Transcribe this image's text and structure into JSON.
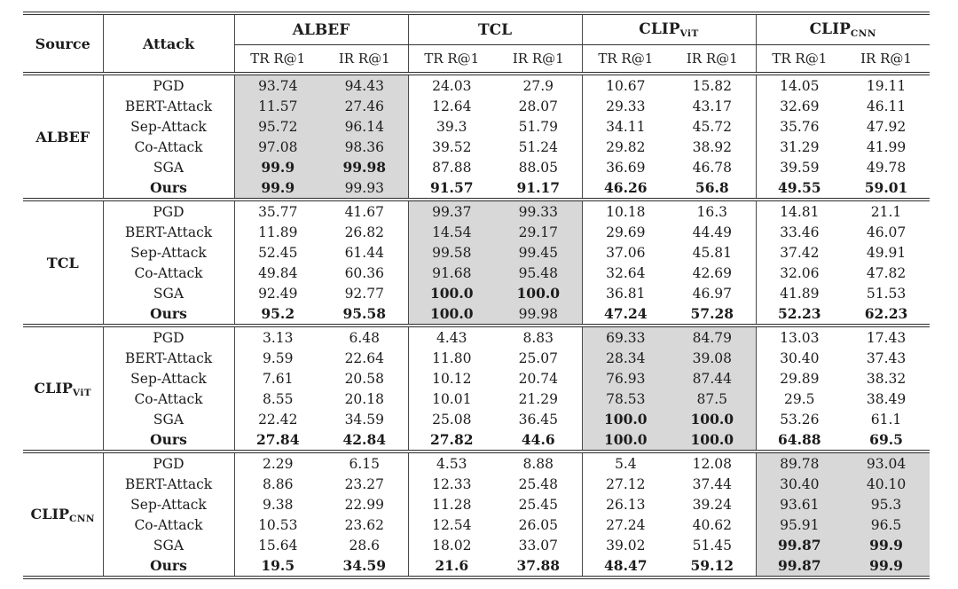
{
  "table": {
    "source_header": "Source",
    "attack_header": "Attack",
    "metric_headers": [
      "TR R@1",
      "IR R@1"
    ],
    "models": [
      {
        "label": "ALBEF",
        "sub": ""
      },
      {
        "label": "TCL",
        "sub": ""
      },
      {
        "label": "CLIP",
        "sub": "ViT"
      },
      {
        "label": "CLIP",
        "sub": "CNN"
      }
    ],
    "blocks": [
      {
        "source": {
          "label": "ALBEF",
          "sub": ""
        },
        "highlight_cols": [
          0,
          1
        ],
        "rows": [
          {
            "attack": "PGD",
            "bold_attack": false,
            "values": [
              "93.74",
              "94.43",
              "24.03",
              "27.9",
              "10.67",
              "15.82",
              "14.05",
              "19.11"
            ],
            "bold": [
              0,
              0,
              0,
              0,
              0,
              0,
              0,
              0
            ]
          },
          {
            "attack": "BERT-Attack",
            "bold_attack": false,
            "values": [
              "11.57",
              "27.46",
              "12.64",
              "28.07",
              "29.33",
              "43.17",
              "32.69",
              "46.11"
            ],
            "bold": [
              0,
              0,
              0,
              0,
              0,
              0,
              0,
              0
            ]
          },
          {
            "attack": "Sep-Attack",
            "bold_attack": false,
            "values": [
              "95.72",
              "96.14",
              "39.3",
              "51.79",
              "34.11",
              "45.72",
              "35.76",
              "47.92"
            ],
            "bold": [
              0,
              0,
              0,
              0,
              0,
              0,
              0,
              0
            ]
          },
          {
            "attack": "Co-Attack",
            "bold_attack": false,
            "values": [
              "97.08",
              "98.36",
              "39.52",
              "51.24",
              "29.82",
              "38.92",
              "31.29",
              "41.99"
            ],
            "bold": [
              0,
              0,
              0,
              0,
              0,
              0,
              0,
              0
            ]
          },
          {
            "attack": "SGA",
            "bold_attack": false,
            "values": [
              "99.9",
              "99.98",
              "87.88",
              "88.05",
              "36.69",
              "46.78",
              "39.59",
              "49.78"
            ],
            "bold": [
              1,
              1,
              0,
              0,
              0,
              0,
              0,
              0
            ]
          },
          {
            "attack": "Ours",
            "bold_attack": true,
            "values": [
              "99.9",
              "99.93",
              "91.57",
              "91.17",
              "46.26",
              "56.8",
              "49.55",
              "59.01"
            ],
            "bold": [
              1,
              0,
              1,
              1,
              1,
              1,
              1,
              1
            ]
          }
        ]
      },
      {
        "source": {
          "label": "TCL",
          "sub": ""
        },
        "highlight_cols": [
          2,
          3
        ],
        "rows": [
          {
            "attack": "PGD",
            "bold_attack": false,
            "values": [
              "35.77",
              "41.67",
              "99.37",
              "99.33",
              "10.18",
              "16.3",
              "14.81",
              "21.1"
            ],
            "bold": [
              0,
              0,
              0,
              0,
              0,
              0,
              0,
              0
            ]
          },
          {
            "attack": "BERT-Attack",
            "bold_attack": false,
            "values": [
              "11.89",
              "26.82",
              "14.54",
              "29.17",
              "29.69",
              "44.49",
              "33.46",
              "46.07"
            ],
            "bold": [
              0,
              0,
              0,
              0,
              0,
              0,
              0,
              0
            ]
          },
          {
            "attack": "Sep-Attack",
            "bold_attack": false,
            "values": [
              "52.45",
              "61.44",
              "99.58",
              "99.45",
              "37.06",
              "45.81",
              "37.42",
              "49.91"
            ],
            "bold": [
              0,
              0,
              0,
              0,
              0,
              0,
              0,
              0
            ]
          },
          {
            "attack": "Co-Attack",
            "bold_attack": false,
            "values": [
              "49.84",
              "60.36",
              "91.68",
              "95.48",
              "32.64",
              "42.69",
              "32.06",
              "47.82"
            ],
            "bold": [
              0,
              0,
              0,
              0,
              0,
              0,
              0,
              0
            ]
          },
          {
            "attack": "SGA",
            "bold_attack": false,
            "values": [
              "92.49",
              "92.77",
              "100.0",
              "100.0",
              "36.81",
              "46.97",
              "41.89",
              "51.53"
            ],
            "bold": [
              0,
              0,
              1,
              1,
              0,
              0,
              0,
              0
            ]
          },
          {
            "attack": "Ours",
            "bold_attack": true,
            "values": [
              "95.2",
              "95.58",
              "100.0",
              "99.98",
              "47.24",
              "57.28",
              "52.23",
              "62.23"
            ],
            "bold": [
              1,
              1,
              1,
              0,
              1,
              1,
              1,
              1
            ]
          }
        ]
      },
      {
        "source": {
          "label": "CLIP",
          "sub": "ViT"
        },
        "highlight_cols": [
          4,
          5
        ],
        "rows": [
          {
            "attack": "PGD",
            "bold_attack": false,
            "values": [
              "3.13",
              "6.48",
              "4.43",
              "8.83",
              "69.33",
              "84.79",
              "13.03",
              "17.43"
            ],
            "bold": [
              0,
              0,
              0,
              0,
              0,
              0,
              0,
              0
            ]
          },
          {
            "attack": "BERT-Attack",
            "bold_attack": false,
            "values": [
              "9.59",
              "22.64",
              "11.80",
              "25.07",
              "28.34",
              "39.08",
              "30.40",
              "37.43"
            ],
            "bold": [
              0,
              0,
              0,
              0,
              0,
              0,
              0,
              0
            ]
          },
          {
            "attack": "Sep-Attack",
            "bold_attack": false,
            "values": [
              "7.61",
              "20.58",
              "10.12",
              "20.74",
              "76.93",
              "87.44",
              "29.89",
              "38.32"
            ],
            "bold": [
              0,
              0,
              0,
              0,
              0,
              0,
              0,
              0
            ]
          },
          {
            "attack": "Co-Attack",
            "bold_attack": false,
            "values": [
              "8.55",
              "20.18",
              "10.01",
              "21.29",
              "78.53",
              "87.5",
              "29.5",
              "38.49"
            ],
            "bold": [
              0,
              0,
              0,
              0,
              0,
              0,
              0,
              0
            ]
          },
          {
            "attack": "SGA",
            "bold_attack": false,
            "values": [
              "22.42",
              "34.59",
              "25.08",
              "36.45",
              "100.0",
              "100.0",
              "53.26",
              "61.1"
            ],
            "bold": [
              0,
              0,
              0,
              0,
              1,
              1,
              0,
              0
            ]
          },
          {
            "attack": "Ours",
            "bold_attack": true,
            "values": [
              "27.84",
              "42.84",
              "27.82",
              "44.6",
              "100.0",
              "100.0",
              "64.88",
              "69.5"
            ],
            "bold": [
              1,
              1,
              1,
              1,
              1,
              1,
              1,
              1
            ]
          }
        ]
      },
      {
        "source": {
          "label": "CLIP",
          "sub": "CNN"
        },
        "highlight_cols": [
          6,
          7
        ],
        "rows": [
          {
            "attack": "PGD",
            "bold_attack": false,
            "values": [
              "2.29",
              "6.15",
              "4.53",
              "8.88",
              "5.4",
              "12.08",
              "89.78",
              "93.04"
            ],
            "bold": [
              0,
              0,
              0,
              0,
              0,
              0,
              0,
              0
            ]
          },
          {
            "attack": "BERT-Attack",
            "bold_attack": false,
            "values": [
              "8.86",
              "23.27",
              "12.33",
              "25.48",
              "27.12",
              "37.44",
              "30.40",
              "40.10"
            ],
            "bold": [
              0,
              0,
              0,
              0,
              0,
              0,
              0,
              0
            ]
          },
          {
            "attack": "Sep-Attack",
            "bold_attack": false,
            "values": [
              "9.38",
              "22.99",
              "11.28",
              "25.45",
              "26.13",
              "39.24",
              "93.61",
              "95.3"
            ],
            "bold": [
              0,
              0,
              0,
              0,
              0,
              0,
              0,
              0
            ]
          },
          {
            "attack": "Co-Attack",
            "bold_attack": false,
            "values": [
              "10.53",
              "23.62",
              "12.54",
              "26.05",
              "27.24",
              "40.62",
              "95.91",
              "96.5"
            ],
            "bold": [
              0,
              0,
              0,
              0,
              0,
              0,
              0,
              0
            ]
          },
          {
            "attack": "SGA",
            "bold_attack": false,
            "values": [
              "15.64",
              "28.6",
              "18.02",
              "33.07",
              "39.02",
              "51.45",
              "99.87",
              "99.9"
            ],
            "bold": [
              0,
              0,
              0,
              0,
              0,
              0,
              1,
              1
            ]
          },
          {
            "attack": "Ours",
            "bold_attack": true,
            "values": [
              "19.5",
              "34.59",
              "21.6",
              "37.88",
              "48.47",
              "59.12",
              "99.87",
              "99.9"
            ],
            "bold": [
              1,
              1,
              1,
              1,
              1,
              1,
              1,
              1
            ]
          }
        ]
      }
    ]
  },
  "colors": {
    "highlight_cell": "#d8d8d8",
    "rule": "#2b2b2b",
    "text": "#1c1c1c"
  }
}
